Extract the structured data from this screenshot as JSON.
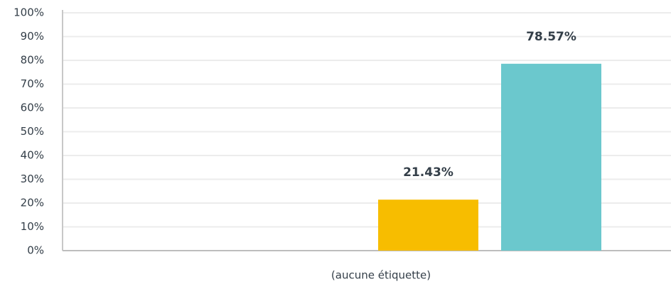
{
  "chart_data": {
    "type": "bar",
    "categories": [
      "(aucune étiquette)"
    ],
    "series": [
      {
        "color": "#f7bd00",
        "values": [
          21.43
        ],
        "value_labels": [
          "21.43%"
        ]
      },
      {
        "color": "#6bc8cd",
        "values": [
          78.57
        ],
        "value_labels": [
          "78.57%"
        ]
      }
    ],
    "ylim": [
      0,
      100
    ],
    "yticks": [
      {
        "value": 0,
        "label": "0%"
      },
      {
        "value": 10,
        "label": "10%"
      },
      {
        "value": 20,
        "label": "20%"
      },
      {
        "value": 30,
        "label": "30%"
      },
      {
        "value": 40,
        "label": "40%"
      },
      {
        "value": 50,
        "label": "50%"
      },
      {
        "value": 60,
        "label": "60%"
      },
      {
        "value": 70,
        "label": "70%"
      },
      {
        "value": 80,
        "label": "80%"
      },
      {
        "value": 90,
        "label": "90%"
      },
      {
        "value": 100,
        "label": "100%"
      }
    ],
    "grid": true
  }
}
